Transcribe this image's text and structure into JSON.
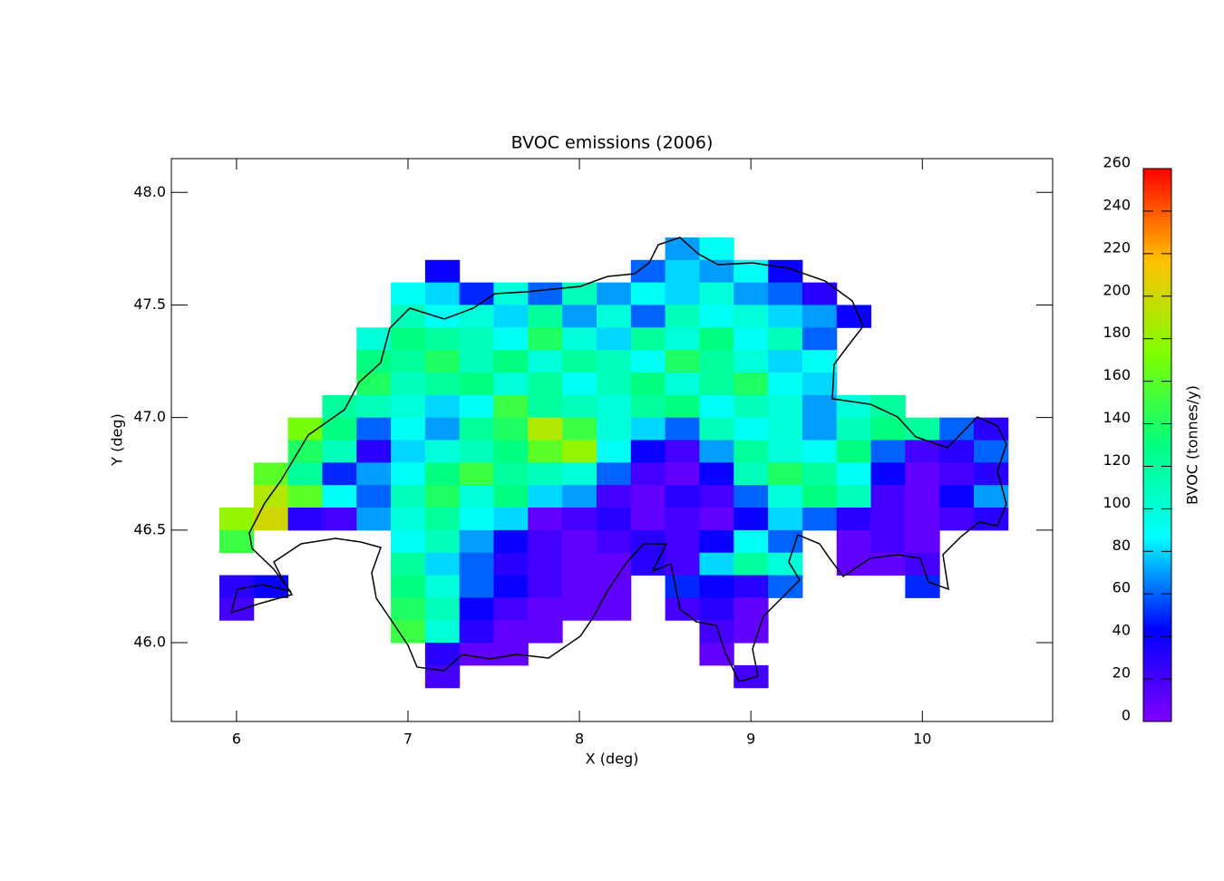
{
  "chart_data": {
    "type": "heatmap",
    "title": "BVOC emissions (2006)",
    "xlabel": "X (deg)",
    "ylabel": "Y (deg)",
    "x": [
      6,
      6.2,
      6.4,
      6.6,
      6.8,
      7,
      7.2,
      7.4,
      7.6,
      7.8,
      8,
      8.2,
      8.4,
      8.6,
      8.8,
      9,
      9.2,
      9.4,
      9.6,
      9.8,
      10,
      10.2,
      10.4
    ],
    "y": [
      47.75,
      47.65,
      47.55,
      47.45,
      47.35,
      47.25,
      47.15,
      47.05,
      46.95,
      46.85,
      46.75,
      46.65,
      46.55,
      46.45,
      46.35,
      46.25,
      46.15,
      46.05,
      45.95,
      45.85
    ],
    "values": [
      [
        null,
        null,
        null,
        null,
        null,
        null,
        null,
        null,
        null,
        null,
        null,
        null,
        null,
        70,
        90,
        null,
        null,
        null,
        null,
        null,
        null,
        null,
        null
      ],
      [
        null,
        null,
        null,
        null,
        null,
        null,
        40,
        null,
        null,
        null,
        null,
        null,
        60,
        80,
        70,
        90,
        40,
        null,
        null,
        null,
        null,
        null,
        null
      ],
      [
        null,
        null,
        null,
        null,
        null,
        90,
        80,
        50,
        100,
        60,
        110,
        70,
        90,
        80,
        100,
        70,
        60,
        30,
        null,
        null,
        null,
        null,
        null
      ],
      [
        null,
        null,
        null,
        null,
        null,
        110,
        90,
        100,
        80,
        120,
        70,
        100,
        60,
        110,
        90,
        100,
        80,
        70,
        40,
        null,
        null,
        null,
        null
      ],
      [
        null,
        null,
        null,
        null,
        100,
        130,
        120,
        110,
        90,
        140,
        100,
        80,
        120,
        100,
        130,
        90,
        110,
        60,
        null,
        null,
        null,
        null,
        null
      ],
      [
        null,
        null,
        null,
        null,
        130,
        120,
        140,
        110,
        130,
        100,
        120,
        110,
        90,
        140,
        120,
        100,
        80,
        90,
        null,
        null,
        null,
        null,
        null
      ],
      [
        null,
        null,
        null,
        null,
        140,
        110,
        120,
        130,
        100,
        120,
        90,
        110,
        130,
        100,
        120,
        140,
        90,
        80,
        null,
        null,
        null,
        null,
        null
      ],
      [
        null,
        null,
        null,
        120,
        110,
        100,
        80,
        90,
        150,
        120,
        110,
        100,
        120,
        130,
        90,
        110,
        100,
        70,
        100,
        120,
        null,
        null,
        null
      ],
      [
        null,
        null,
        170,
        130,
        60,
        90,
        70,
        120,
        140,
        190,
        150,
        100,
        80,
        60,
        110,
        90,
        100,
        70,
        110,
        130,
        120,
        60,
        30
      ],
      [
        null,
        null,
        140,
        110,
        30,
        80,
        100,
        110,
        130,
        160,
        180,
        90,
        40,
        20,
        70,
        120,
        100,
        90,
        130,
        60,
        20,
        30,
        60
      ],
      [
        null,
        160,
        120,
        50,
        70,
        90,
        130,
        150,
        120,
        110,
        100,
        60,
        20,
        10,
        40,
        110,
        140,
        120,
        90,
        40,
        10,
        20,
        30
      ],
      [
        null,
        190,
        160,
        90,
        60,
        110,
        140,
        100,
        130,
        80,
        70,
        20,
        10,
        30,
        20,
        60,
        100,
        130,
        110,
        20,
        10,
        40,
        70
      ],
      [
        180,
        200,
        30,
        20,
        70,
        100,
        120,
        90,
        80,
        10,
        20,
        30,
        10,
        20,
        10,
        40,
        80,
        60,
        30,
        20,
        10,
        20,
        30
      ],
      [
        150,
        null,
        null,
        null,
        null,
        90,
        110,
        70,
        40,
        20,
        10,
        20,
        30,
        20,
        40,
        90,
        60,
        null,
        10,
        20,
        10,
        null,
        null
      ],
      [
        null,
        null,
        null,
        null,
        null,
        120,
        80,
        60,
        30,
        20,
        10,
        10,
        30,
        20,
        80,
        120,
        100,
        null,
        10,
        10,
        20,
        null,
        null
      ],
      [
        30,
        40,
        null,
        null,
        null,
        130,
        100,
        60,
        40,
        20,
        10,
        10,
        null,
        50,
        40,
        30,
        60,
        null,
        null,
        null,
        50,
        null,
        null
      ],
      [
        20,
        null,
        null,
        null,
        null,
        140,
        110,
        40,
        20,
        10,
        10,
        10,
        null,
        20,
        30,
        10,
        null,
        null,
        null,
        null,
        null,
        null,
        null
      ],
      [
        null,
        null,
        null,
        null,
        null,
        150,
        100,
        30,
        10,
        10,
        null,
        null,
        null,
        null,
        20,
        10,
        null,
        null,
        null,
        null,
        null,
        null,
        null
      ],
      [
        null,
        null,
        null,
        null,
        null,
        null,
        30,
        10,
        10,
        null,
        null,
        null,
        null,
        null,
        10,
        null,
        null,
        null,
        null,
        null,
        null,
        null,
        null
      ],
      [
        null,
        null,
        null,
        null,
        null,
        null,
        20,
        null,
        null,
        null,
        null,
        null,
        null,
        null,
        null,
        20,
        null,
        null,
        null,
        null,
        null,
        null,
        null
      ]
    ],
    "xlim": [
      5.62,
      10.76
    ],
    "ylim": [
      45.65,
      48.15
    ],
    "xticks": [
      6,
      7,
      8,
      9,
      10
    ],
    "yticks": [
      {
        "value": 46,
        "label": "46.0"
      },
      46.5,
      {
        "value": 47,
        "label": "47.0"
      },
      47.5,
      {
        "value": 48,
        "label": "48.0"
      }
    ],
    "colormap": [
      "#7f00ff",
      "#0000ff",
      "#00ffff",
      "#00ff80",
      "#80ff00",
      "#ffc000",
      "#ff0000"
    ],
    "colorbar": {
      "label": "BVOC (tonnes/y)",
      "lim": [
        0,
        260
      ],
      "ticks": [
        0,
        20,
        40,
        60,
        80,
        100,
        120,
        140,
        160,
        180,
        200,
        220,
        240,
        260
      ]
    }
  }
}
